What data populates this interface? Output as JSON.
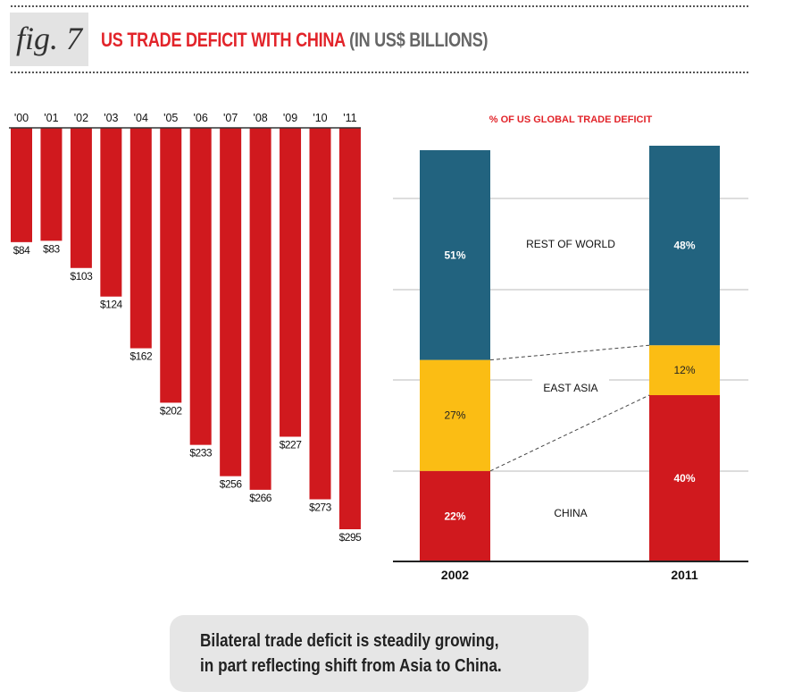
{
  "header": {
    "fig_label": "fig. 7",
    "title_main": "US TRADE DEFICIT WITH CHINA",
    "title_sub": "(IN US$ BILLIONS)"
  },
  "colors": {
    "red": "#d0191e",
    "teal": "#22637f",
    "yellow": "#fbbd14",
    "title_red": "#e2242a"
  },
  "chart_data": [
    {
      "type": "bar",
      "title": "US Trade Deficit with China (in US$ billions)",
      "orientation": "downward",
      "categories": [
        "'00",
        "'01",
        "'02",
        "'03",
        "'04",
        "'05",
        "'06",
        "'07",
        "'08",
        "'09",
        "'10",
        "'11"
      ],
      "values": [
        84,
        83,
        103,
        124,
        162,
        202,
        233,
        256,
        266,
        227,
        273,
        295
      ],
      "value_labels": [
        "$84",
        "$83",
        "$103",
        "$124",
        "$162",
        "$202",
        "$233",
        "$256",
        "$266",
        "$227",
        "$273",
        "$295"
      ],
      "xlabel": "",
      "ylabel": "",
      "ylim": [
        0,
        300
      ],
      "grid": false
    },
    {
      "type": "bar",
      "stacked": true,
      "title": "% OF US GLOBAL TRADE DEFICIT",
      "categories": [
        "2002",
        "2011"
      ],
      "series": [
        {
          "name": "CHINA",
          "values": [
            22,
            40
          ],
          "labels": [
            "22%",
            "40%"
          ]
        },
        {
          "name": "EAST ASIA",
          "values": [
            27,
            12
          ],
          "labels": [
            "27%",
            "12%"
          ]
        },
        {
          "name": "REST OF WORLD",
          "values": [
            51,
            48
          ],
          "labels": [
            "51%",
            "48%"
          ]
        }
      ],
      "ylim": [
        0,
        100
      ],
      "grid": true,
      "legend": "inline-between-bars"
    }
  ],
  "caption": {
    "line1": "Bilateral trade deficit is steadily growing,",
    "line2": "in part reflecting shift from Asia to China."
  }
}
